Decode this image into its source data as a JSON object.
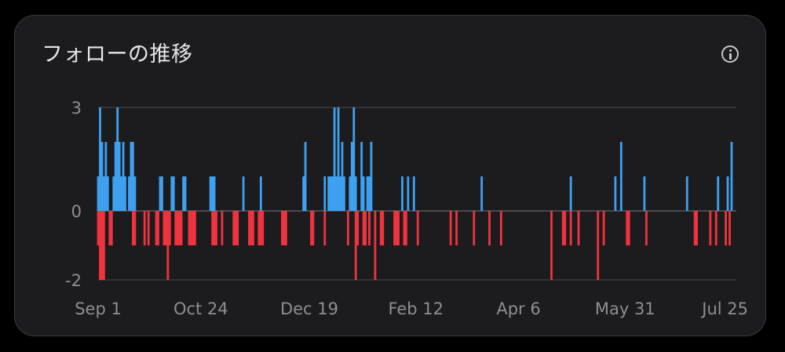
{
  "title": "フォローの推移",
  "colors": {
    "background": "#1c1c1e",
    "gain": "#3ea0f0",
    "loss": "#f0333f",
    "grid": "#4a4a4e",
    "label": "#8e8e93"
  },
  "icons": {
    "info": "info-circle-icon"
  },
  "chart_data": {
    "type": "bar",
    "ylim": [
      -2,
      3
    ],
    "yticks": [
      3,
      0,
      -2
    ],
    "xlim": [
      "2022-09-01",
      "2023-07-25"
    ],
    "xticks": [
      {
        "date": "2022-09-01",
        "label": "Sep 1"
      },
      {
        "date": "2022-10-24",
        "label": "Oct 24"
      },
      {
        "date": "2022-12-19",
        "label": "Dec 19"
      },
      {
        "date": "2023-02-12",
        "label": "Feb 12"
      },
      {
        "date": "2023-04-06",
        "label": "Apr 6"
      },
      {
        "date": "2023-05-31",
        "label": "May 31"
      },
      {
        "date": "2023-07-25",
        "label": "Jul 25"
      }
    ],
    "series": [
      {
        "dates": [
          "2022-09-01",
          "2022-09-02",
          "2022-09-03",
          "2022-09-04",
          "2022-09-05",
          "2022-09-06",
          "2022-09-09",
          "2022-09-10",
          "2022-09-11",
          "2022-09-12",
          "2022-09-13",
          "2022-09-14",
          "2022-09-15",
          "2022-09-17",
          "2022-09-18",
          "2022-09-19",
          "2022-09-20",
          "2022-10-03",
          "2022-10-04",
          "2022-10-09",
          "2022-10-10",
          "2022-10-15",
          "2022-10-16",
          "2022-10-29",
          "2022-10-30",
          "2022-10-31",
          "2022-11-15",
          "2022-11-24",
          "2022-12-16",
          "2022-12-17",
          "2022-12-27",
          "2022-12-29",
          "2022-12-30",
          "2022-12-31",
          "2023-01-01",
          "2023-01-02",
          "2023-01-03",
          "2023-01-04",
          "2023-01-05",
          "2023-01-06",
          "2023-01-09",
          "2023-01-10",
          "2023-01-11",
          "2023-01-12",
          "2023-01-15",
          "2023-01-16",
          "2023-01-18",
          "2023-01-19",
          "2023-01-20",
          "2023-02-05",
          "2023-02-08",
          "2023-02-11",
          "2023-03-18",
          "2023-05-03",
          "2023-05-26",
          "2023-05-29",
          "2023-06-10",
          "2023-07-02",
          "2023-07-18",
          "2023-07-23",
          "2023-07-25"
        ],
        "values": [
          1,
          3,
          2,
          1,
          2,
          1,
          1,
          2,
          3,
          2,
          1,
          2,
          1,
          1,
          2,
          2,
          1,
          1,
          1,
          1,
          1,
          1,
          1,
          1,
          1,
          1,
          1,
          1,
          1,
          2,
          1,
          1,
          1,
          1,
          3,
          1,
          3,
          1,
          2,
          1,
          1,
          2,
          3,
          1,
          2,
          1,
          1,
          1,
          2,
          1,
          1,
          1,
          1,
          1,
          1,
          2,
          1,
          1,
          1,
          1,
          2
        ]
      },
      {
        "dates": [
          "2022-09-01",
          "2022-09-02",
          "2022-09-03",
          "2022-09-04",
          "2022-09-07",
          "2022-09-08",
          "2022-09-19",
          "2022-09-20",
          "2022-09-25",
          "2022-09-27",
          "2022-10-01",
          "2022-10-02",
          "2022-10-05",
          "2022-10-06",
          "2022-10-07",
          "2022-10-08",
          "2022-10-11",
          "2022-10-12",
          "2022-10-13",
          "2022-10-14",
          "2022-10-18",
          "2022-10-19",
          "2022-10-20",
          "2022-10-21",
          "2022-10-30",
          "2022-10-31",
          "2022-11-01",
          "2022-11-04",
          "2022-11-10",
          "2022-11-11",
          "2022-11-12",
          "2022-11-18",
          "2022-11-19",
          "2022-11-20",
          "2022-11-23",
          "2022-11-24",
          "2022-11-25",
          "2022-12-05",
          "2022-12-06",
          "2022-12-07",
          "2022-12-20",
          "2022-12-21",
          "2022-12-27",
          "2023-01-08",
          "2023-01-12",
          "2023-01-13",
          "2023-01-16",
          "2023-01-17",
          "2023-01-19",
          "2023-01-22",
          "2023-01-25",
          "2023-01-26",
          "2023-02-01",
          "2023-02-02",
          "2023-02-03",
          "2023-02-06",
          "2023-02-07",
          "2023-02-13",
          "2023-03-02",
          "2023-03-05",
          "2023-03-14",
          "2023-03-22",
          "2023-03-28",
          "2023-04-23",
          "2023-04-29",
          "2023-04-30",
          "2023-05-03",
          "2023-05-07",
          "2023-05-17",
          "2023-05-20",
          "2023-06-01",
          "2023-06-02",
          "2023-06-11",
          "2023-07-06",
          "2023-07-07",
          "2023-07-14",
          "2023-07-17",
          "2023-07-22",
          "2023-07-24"
        ],
        "values": [
          -1,
          -2,
          -2,
          -2,
          -1,
          -1,
          -1,
          -1,
          -1,
          -1,
          -1,
          -1,
          -1,
          -1,
          -2,
          -1,
          -1,
          -1,
          -1,
          -1,
          -1,
          -1,
          -1,
          -1,
          -1,
          -1,
          -1,
          -1,
          -1,
          -1,
          -1,
          -1,
          -1,
          -1,
          -1,
          -1,
          -1,
          -1,
          -1,
          -1,
          -1,
          -1,
          -1,
          -1,
          -2,
          -1,
          -1,
          -1,
          -1,
          -2,
          -1,
          -1,
          -1,
          -1,
          -1,
          -1,
          -1,
          -1,
          -1,
          -1,
          -1,
          -1,
          -1,
          -2,
          -1,
          -1,
          -1,
          -1,
          -2,
          -1,
          -1,
          -1,
          -1,
          -1,
          -1,
          -1,
          -1,
          -1,
          -1
        ]
      }
    ]
  }
}
